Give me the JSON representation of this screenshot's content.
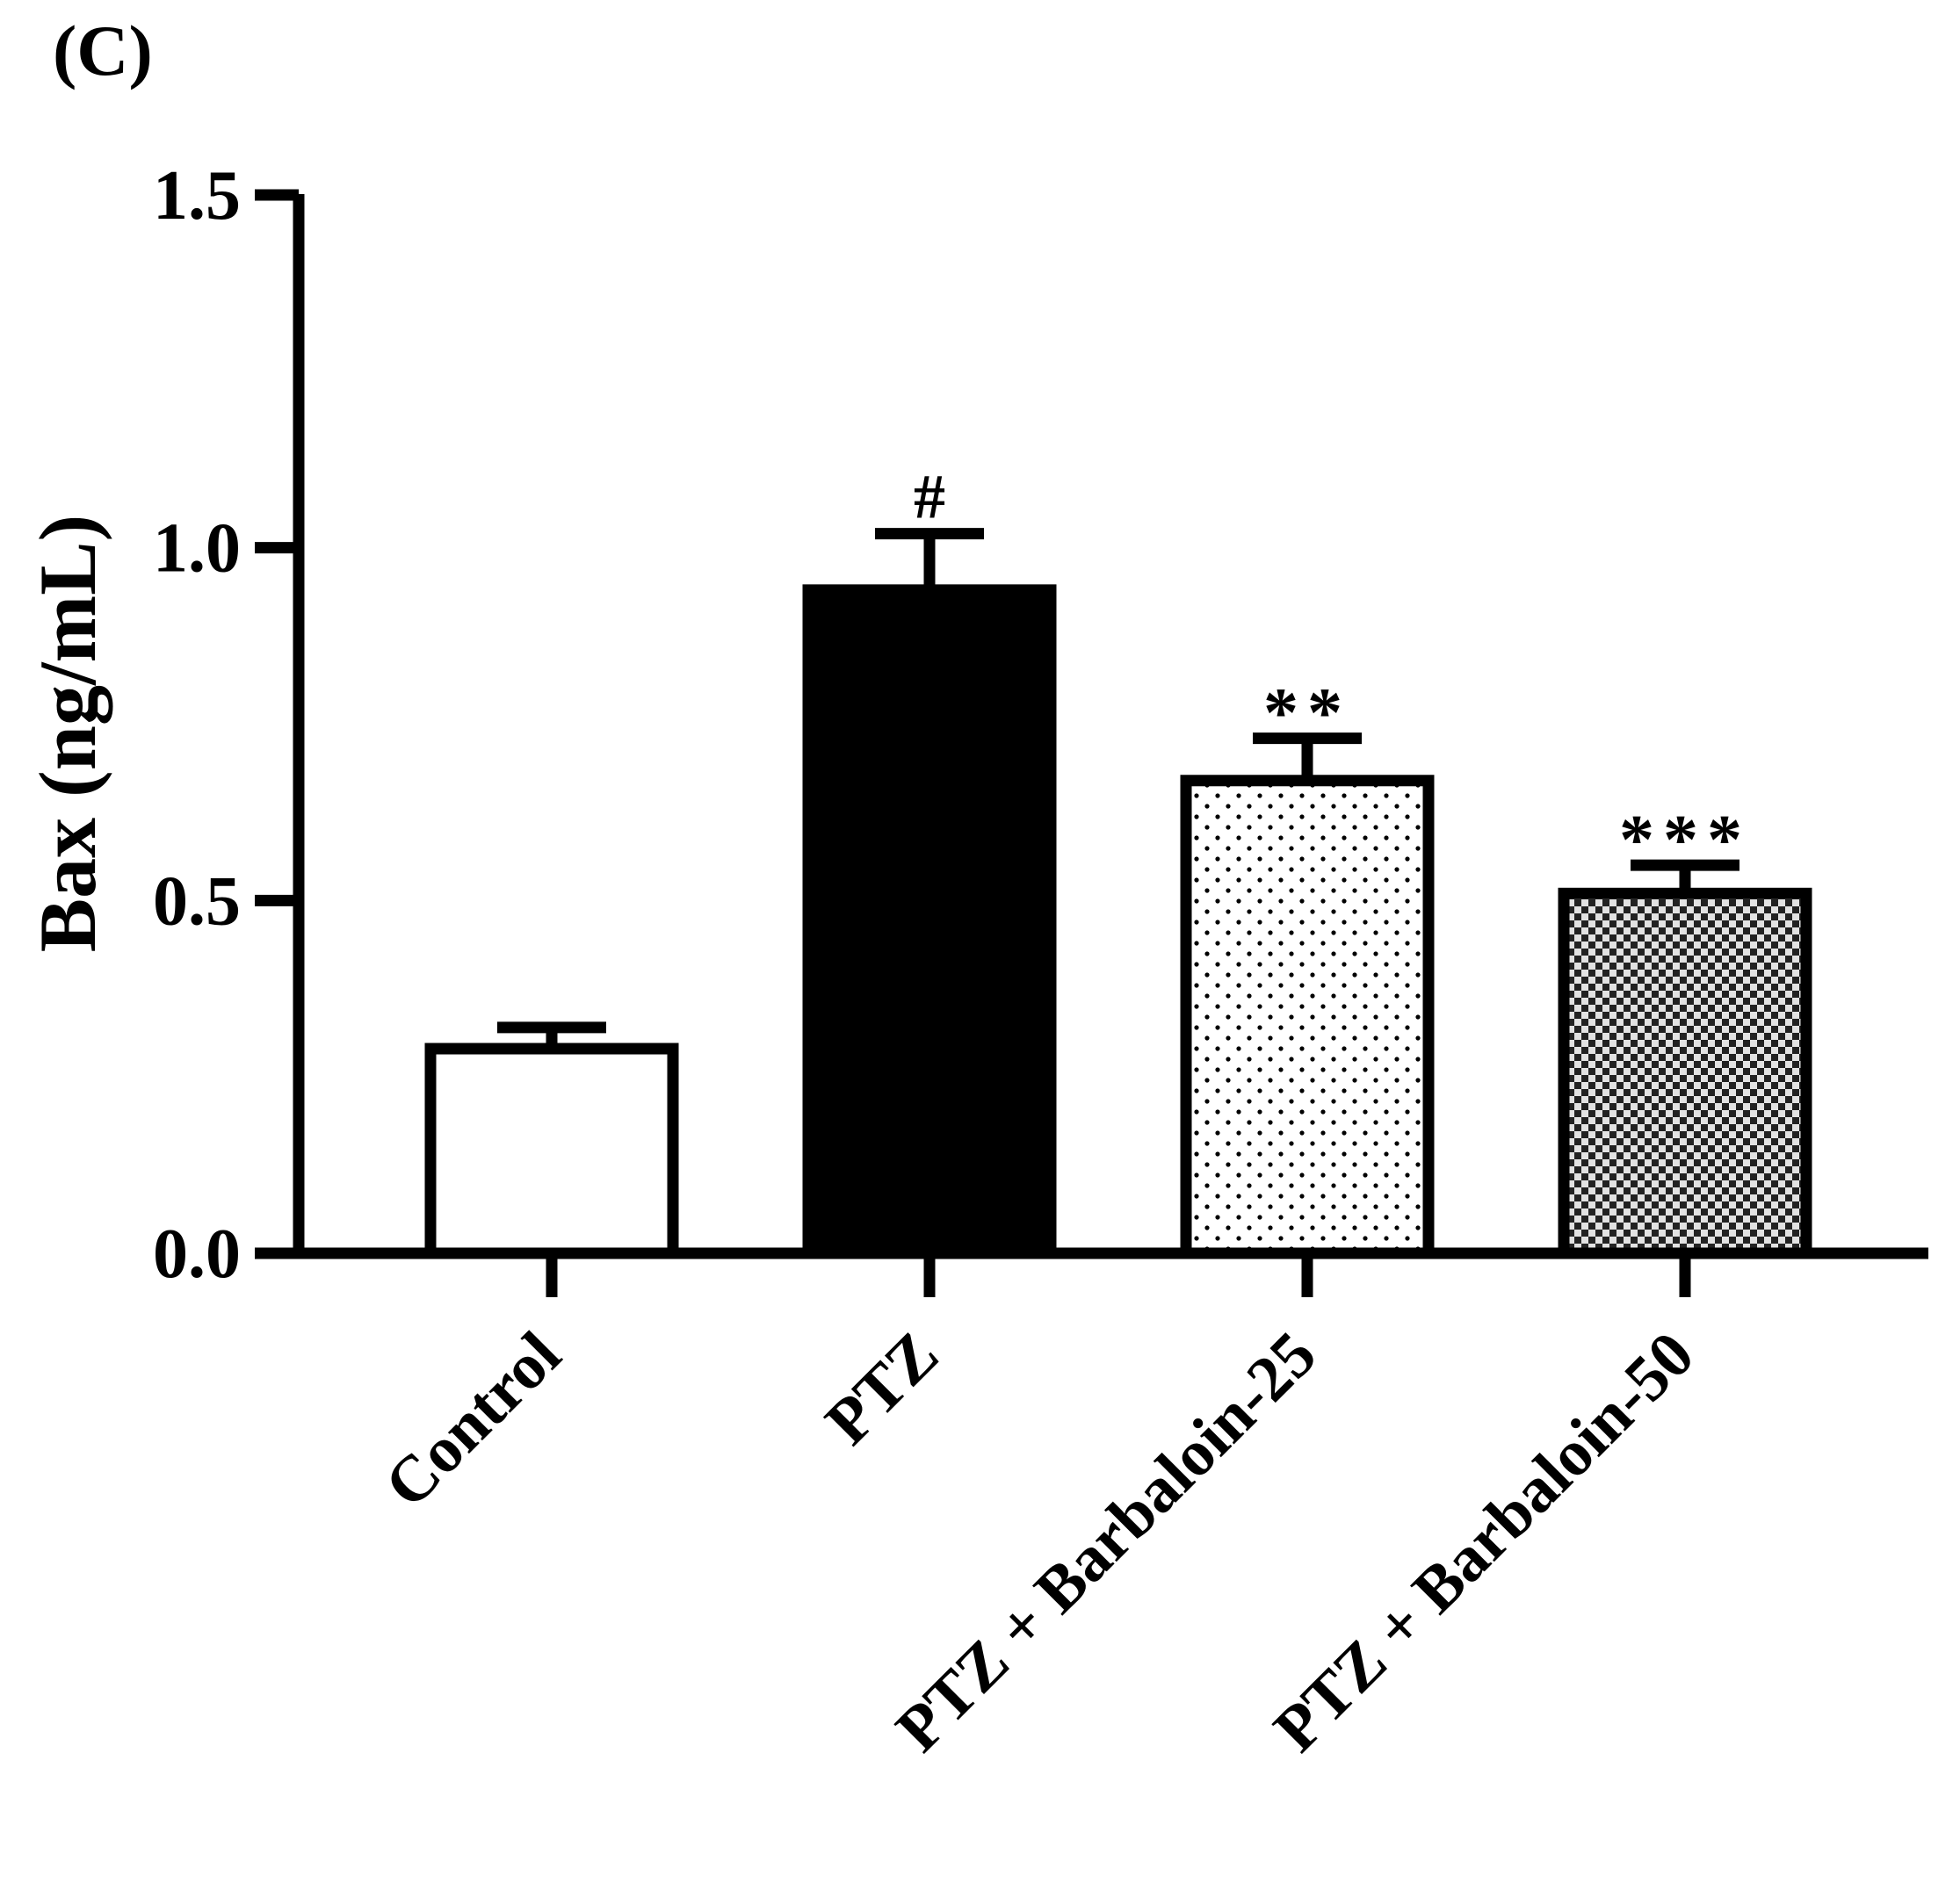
{
  "panel_label": "(C)",
  "chart_data": {
    "type": "bar",
    "title": "",
    "xlabel": "",
    "ylabel": "Bax (ng/mL)",
    "ylim": [
      0,
      1.5
    ],
    "yticks": [
      0.0,
      0.5,
      1.0,
      1.5
    ],
    "ytick_labels": [
      "0.0",
      "0.5",
      "1.0",
      "1.5"
    ],
    "grid": false,
    "legend": "none",
    "categories": [
      "Control",
      "PTZ",
      "PTZ + Barbaloin-25",
      "PTZ + Barbaloin-50"
    ],
    "values": [
      0.29,
      0.94,
      0.67,
      0.51
    ],
    "errors": [
      0.03,
      0.08,
      0.06,
      0.04
    ],
    "fills": [
      "white",
      "black",
      "dots",
      "checker"
    ],
    "annotations": [
      "",
      "#",
      "**",
      "***"
    ],
    "colors": {
      "ink": "#000000",
      "background": "#ffffff"
    }
  }
}
